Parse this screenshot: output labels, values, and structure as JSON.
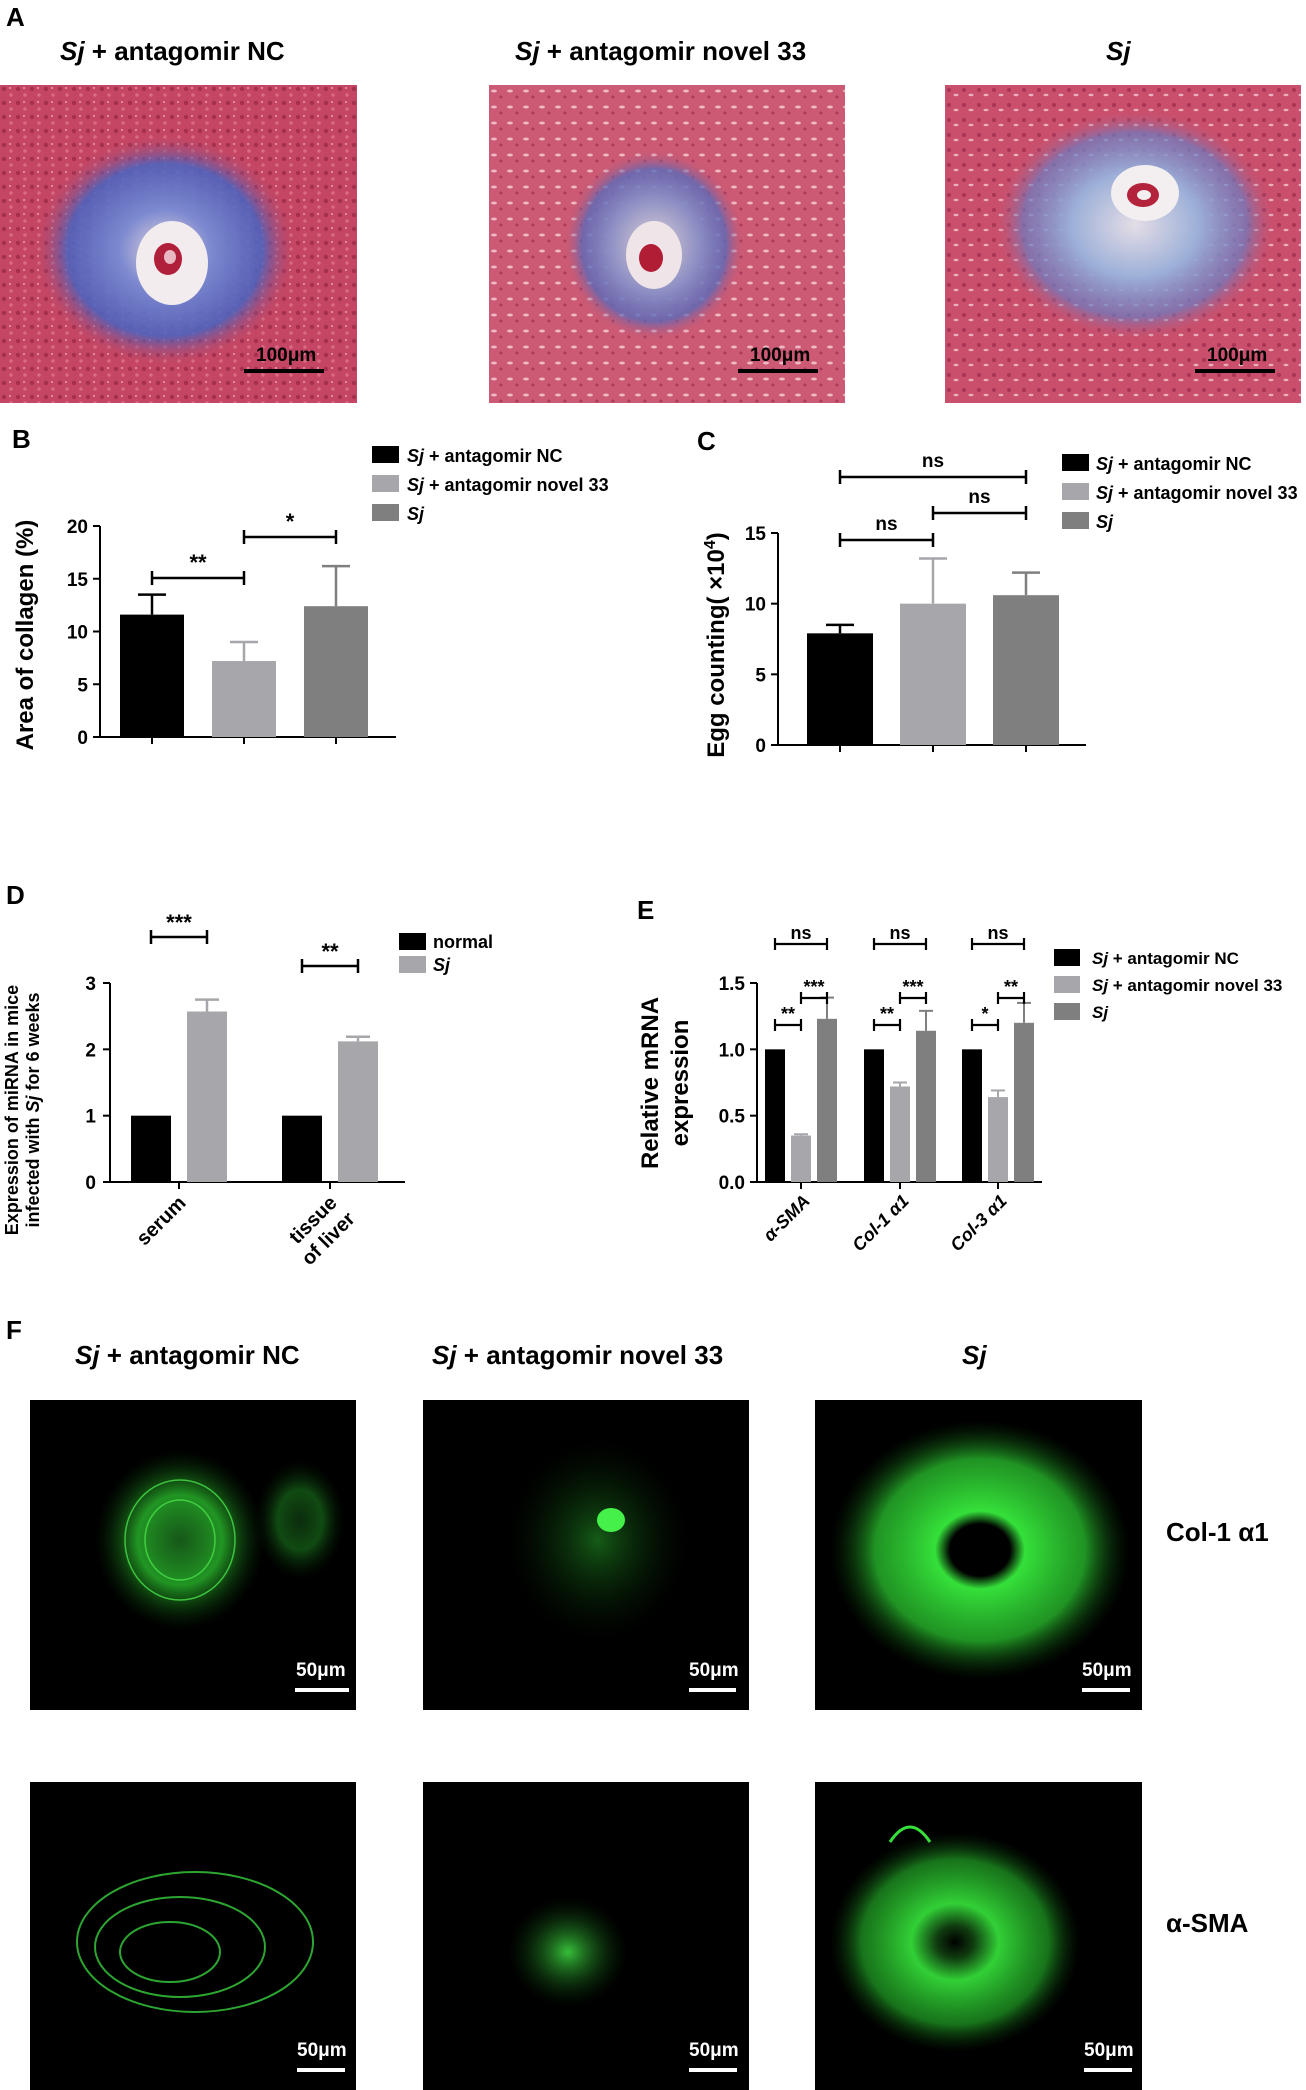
{
  "panels": {
    "A": "A",
    "B": "B",
    "C": "C",
    "D": "D",
    "E": "E",
    "F": "F"
  },
  "groups": {
    "nc": {
      "italic": "Sj",
      "rest": " + antagomir NC"
    },
    "novel": {
      "italic": "Sj",
      "rest": " + antagomir novel 33"
    },
    "sj": {
      "italic": "Sj",
      "rest": ""
    }
  },
  "scale_A": "100μm",
  "scale_F": "50μm",
  "row_labels_F": [
    "Col-1 α1",
    "α-SMA"
  ],
  "colors": {
    "black": "#000000",
    "lightgray": "#a6a6ab",
    "darkgray": "#7f7f7f",
    "stain_red": "#c23a5a",
    "stain_blue": "#4a6fc2",
    "fluor_green": "#35e03a"
  },
  "chart_data": [
    {
      "panel": "B",
      "type": "bar",
      "categories": [
        "Sj + antagomir NC",
        "Sj + antagomir novel 33",
        "Sj"
      ],
      "values": [
        11.6,
        7.2,
        12.4
      ],
      "errors": [
        1.9,
        1.8,
        3.8
      ],
      "ylabel": "Area of collagen (%)",
      "ylim": [
        0,
        20
      ],
      "yticks": [
        "0",
        "5",
        "10",
        "15",
        "20"
      ],
      "legend": [
        "Sj + antagomir NC",
        "Sj + antagomir novel 33",
        "Sj"
      ],
      "significance": [
        {
          "from": 0,
          "to": 1,
          "label": "**"
        },
        {
          "from": 1,
          "to": 2,
          "label": "*"
        }
      ]
    },
    {
      "panel": "C",
      "type": "bar",
      "categories": [
        "Sj + antagomir NC",
        "Sj + antagomir novel 33",
        "Sj"
      ],
      "values": [
        7.9,
        10.0,
        10.6
      ],
      "errors": [
        0.6,
        3.2,
        1.6
      ],
      "ylabel": "Egg counting( ×10",
      "ylabel_sup": "4",
      "ylabel_end": ")",
      "ylim": [
        0,
        15
      ],
      "yticks": [
        "0",
        "5",
        "10",
        "15"
      ],
      "legend": [
        "Sj + antagomir NC",
        "Sj + antagomir novel 33",
        "Sj"
      ],
      "significance": [
        {
          "from": 0,
          "to": 2,
          "label": "ns"
        },
        {
          "from": 0,
          "to": 1,
          "label": "ns"
        },
        {
          "from": 1,
          "to": 2,
          "label": "ns"
        }
      ]
    },
    {
      "panel": "D",
      "type": "bar",
      "categories": [
        "serum",
        "tissue of liver"
      ],
      "category_lines": [
        [
          "serum"
        ],
        [
          "tissue",
          "of liver"
        ]
      ],
      "series": [
        {
          "name": "normal",
          "values": [
            1.0,
            1.0
          ],
          "errors": [
            0,
            0
          ]
        },
        {
          "name": "Sj",
          "values": [
            2.57,
            2.12
          ],
          "errors": [
            0.18,
            0.07
          ]
        }
      ],
      "ylabel_lines": [
        "Expression of miRNA in mice",
        "infected with Sj for 6 weeks"
      ],
      "ylim": [
        0,
        3
      ],
      "yticks": [
        "0",
        "1",
        "2",
        "3"
      ],
      "significance": [
        {
          "category": 0,
          "label": "***"
        },
        {
          "category": 1,
          "label": "**"
        }
      ]
    },
    {
      "panel": "E",
      "type": "bar",
      "categories": [
        "α-SMA",
        "Col-1 α1",
        "Col-3 α1"
      ],
      "series": [
        {
          "name": "Sj + antagomir NC",
          "values": [
            1.0,
            1.0,
            1.0
          ],
          "errors": [
            0,
            0,
            0
          ]
        },
        {
          "name": "Sj + antagomir novel 33",
          "values": [
            0.35,
            0.72,
            0.64
          ],
          "errors": [
            0.01,
            0.03,
            0.05
          ]
        },
        {
          "name": "Sj",
          "values": [
            1.23,
            1.14,
            1.2
          ],
          "errors": [
            0.16,
            0.15,
            0.15
          ]
        }
      ],
      "ylabel_lines": [
        "Relative mRNA",
        "expression"
      ],
      "ylim": [
        0,
        1.5
      ],
      "yticks": [
        "0.0",
        "0.5",
        "1.0",
        "1.5"
      ],
      "significance": [
        {
          "category": 0,
          "pairs": [
            [
              "0-1",
              "**"
            ],
            [
              "1-2",
              "***"
            ],
            [
              "0-2",
              "ns"
            ]
          ]
        },
        {
          "category": 1,
          "pairs": [
            [
              "0-1",
              "**"
            ],
            [
              "1-2",
              "***"
            ],
            [
              "0-2",
              "ns"
            ]
          ]
        },
        {
          "category": 2,
          "pairs": [
            [
              "0-1",
              "*"
            ],
            [
              "1-2",
              "**"
            ],
            [
              "0-2",
              "ns"
            ]
          ]
        }
      ]
    }
  ]
}
